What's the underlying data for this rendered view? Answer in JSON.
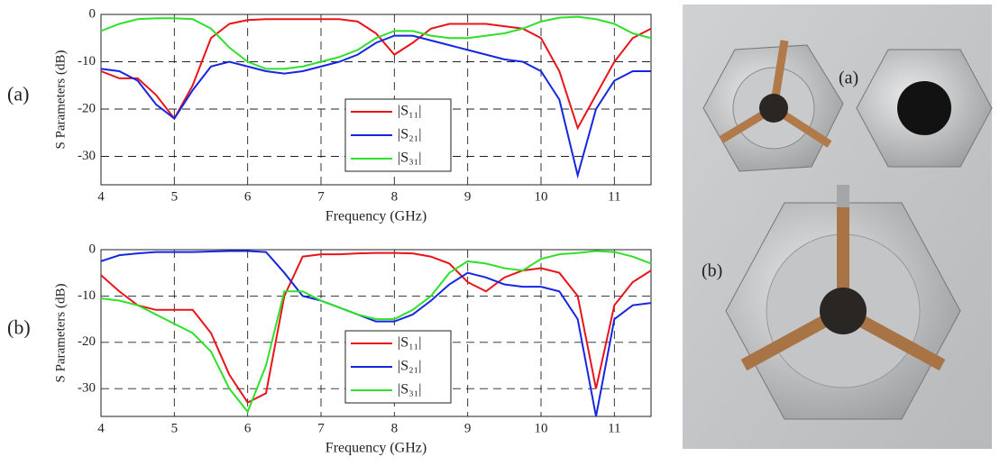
{
  "chart_data": [
    {
      "type": "line",
      "panel_label": "(a)",
      "xlabel": "Frequency (GHz)",
      "ylabel": "S Parameters (dB)",
      "xlim": [
        4,
        11.5
      ],
      "ylim": [
        -36,
        0
      ],
      "xticks": [
        4,
        5,
        6,
        7,
        8,
        9,
        10,
        11
      ],
      "yticks": [
        0,
        -10,
        -20,
        -30
      ],
      "grid": true,
      "legend": "lower center",
      "x": [
        4,
        4.25,
        4.5,
        4.75,
        5,
        5.25,
        5.5,
        5.75,
        6,
        6.25,
        6.5,
        6.75,
        7,
        7.25,
        7.5,
        7.75,
        8,
        8.25,
        8.5,
        8.75,
        9,
        9.25,
        9.5,
        9.75,
        10,
        10.25,
        10.5,
        10.75,
        11,
        11.25,
        11.5
      ],
      "series": [
        {
          "name": "|S₁₁|",
          "color": "#e8141a",
          "values": [
            -12,
            -13.5,
            -13.5,
            -17,
            -22,
            -15,
            -5,
            -2,
            -1.2,
            -1,
            -1,
            -1,
            -1,
            -1,
            -1.5,
            -4,
            -8.5,
            -6,
            -3,
            -2,
            -2,
            -2,
            -2.5,
            -3,
            -5,
            -12,
            -24,
            -17,
            -10,
            -5,
            -3
          ]
        },
        {
          "name": "|S₂₁|",
          "color": "#1526e0",
          "values": [
            -11.5,
            -12,
            -14,
            -19,
            -22,
            -16,
            -11,
            -10,
            -11,
            -12,
            -12.5,
            -12,
            -11,
            -10,
            -8.5,
            -6,
            -4.5,
            -4.5,
            -5.5,
            -6.5,
            -7.5,
            -8.5,
            -9.5,
            -10,
            -12,
            -18,
            -34,
            -20,
            -14,
            -12,
            -12
          ]
        },
        {
          "name": "|S₃₁|",
          "color": "#2fe02a",
          "values": [
            -3.5,
            -2,
            -1,
            -0.8,
            -0.8,
            -1,
            -3,
            -7,
            -10,
            -11.5,
            -11.5,
            -11,
            -10,
            -9,
            -7.5,
            -5,
            -3.5,
            -3.5,
            -4.5,
            -5,
            -5,
            -4.5,
            -4,
            -3,
            -1.5,
            -0.7,
            -0.5,
            -1,
            -2,
            -4,
            -5
          ]
        }
      ]
    },
    {
      "type": "line",
      "panel_label": "(b)",
      "xlabel": "Frequency (GHz)",
      "ylabel": "S Parameters (dB)",
      "xlim": [
        4,
        11.5
      ],
      "ylim": [
        -36,
        0
      ],
      "xticks": [
        4,
        5,
        6,
        7,
        8,
        9,
        10,
        11
      ],
      "yticks": [
        0,
        -10,
        -20,
        -30
      ],
      "grid": true,
      "legend": "lower center",
      "x": [
        4,
        4.25,
        4.5,
        4.75,
        5,
        5.25,
        5.5,
        5.75,
        6,
        6.25,
        6.5,
        6.75,
        7,
        7.25,
        7.5,
        7.75,
        8,
        8.25,
        8.5,
        8.75,
        9,
        9.25,
        9.5,
        9.75,
        10,
        10.25,
        10.5,
        10.75,
        11,
        11.25,
        11.5
      ],
      "series": [
        {
          "name": "|S₁₁|",
          "color": "#e8141a",
          "values": [
            -5.5,
            -9,
            -12,
            -13,
            -13,
            -13,
            -18,
            -27,
            -33,
            -31,
            -10,
            -1.5,
            -1,
            -1,
            -0.8,
            -0.7,
            -0.7,
            -0.8,
            -1.5,
            -3,
            -7,
            -9,
            -6,
            -4.5,
            -4,
            -5,
            -10,
            -30,
            -12,
            -7,
            -4.5
          ]
        },
        {
          "name": "|S₂₁|",
          "color": "#1526e0",
          "values": [
            -2.5,
            -1.2,
            -0.8,
            -0.5,
            -0.5,
            -0.5,
            -0.4,
            -0.3,
            -0.3,
            -0.5,
            -5,
            -10,
            -11,
            -12.5,
            -14,
            -15.5,
            -15.5,
            -14,
            -11,
            -7.5,
            -5,
            -6,
            -7.5,
            -8,
            -8,
            -9,
            -15,
            -36,
            -15,
            -12,
            -11.5
          ]
        },
        {
          "name": "|S₃₁|",
          "color": "#2fe02a",
          "values": [
            -10.5,
            -11,
            -12,
            -14,
            -16,
            -18,
            -22,
            -30,
            -35,
            -25,
            -9,
            -9,
            -11,
            -12.5,
            -14,
            -15,
            -15,
            -13,
            -10,
            -5,
            -2.5,
            -3,
            -4,
            -4.5,
            -2,
            -1,
            -0.7,
            -0.3,
            -0.5,
            -1.5,
            -3
          ]
        }
      ]
    }
  ],
  "photo": {
    "labels": [
      "(a)",
      "(b)"
    ]
  }
}
